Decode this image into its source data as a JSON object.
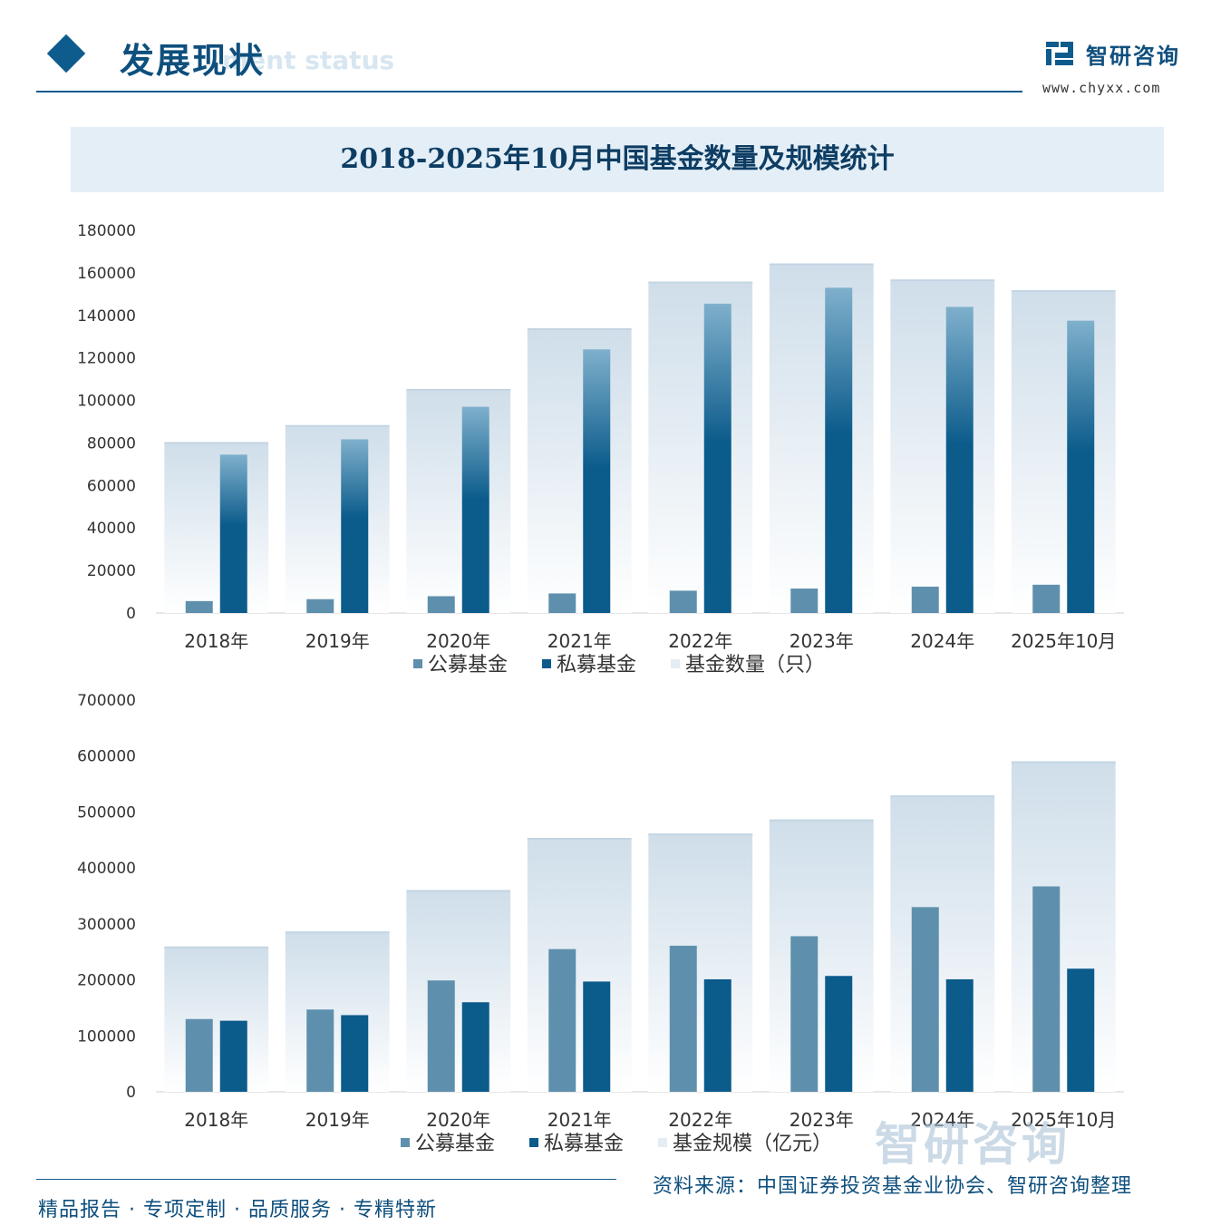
{
  "header": {
    "title": "发展现状",
    "subtitle_en": "ment status",
    "logo_text": "智研咨询",
    "logo_url": "www.chyxx.com"
  },
  "title": "2018-2025年10月中国基金数量及规模统计",
  "colors": {
    "public": "#5e90ad",
    "private": "#0b5b8b",
    "total_top": "#cfdeea",
    "total_bottom": "#ffffff",
    "accent": "#0e5c8e"
  },
  "chart_data": [
    {
      "type": "bar",
      "categories": [
        "2018年",
        "2019年",
        "2020年",
        "2021年",
        "2022年",
        "2023年",
        "2024年",
        "2025年10月"
      ],
      "ylim": [
        0,
        180000
      ],
      "yticks": [
        0,
        20000,
        40000,
        60000,
        80000,
        100000,
        120000,
        140000,
        160000,
        180000
      ],
      "series": [
        {
          "name": "公募基金",
          "values": [
            5600,
            6500,
            7900,
            9200,
            10500,
            11500,
            12400,
            13300
          ]
        },
        {
          "name": "私募基金",
          "values": [
            74500,
            81700,
            97000,
            124000,
            145500,
            153000,
            144000,
            137500
          ]
        },
        {
          "name": "基金数量（只）",
          "values": [
            80000,
            88000,
            105000,
            133500,
            155500,
            164000,
            156500,
            151500
          ]
        }
      ],
      "legend": "bottom"
    },
    {
      "type": "bar",
      "categories": [
        "2018年",
        "2019年",
        "2020年",
        "2021年",
        "2022年",
        "2023年",
        "2024年",
        "2025年10月"
      ],
      "ylim": [
        0,
        700000
      ],
      "yticks": [
        0,
        100000,
        200000,
        300000,
        400000,
        500000,
        600000,
        700000
      ],
      "series": [
        {
          "name": "公募基金",
          "values": [
            130000,
            147000,
            199000,
            255000,
            261000,
            278000,
            330000,
            367000
          ]
        },
        {
          "name": "私募基金",
          "values": [
            127000,
            137000,
            160000,
            197000,
            201000,
            207000,
            201000,
            220000
          ]
        },
        {
          "name": "基金规模（亿元）",
          "values": [
            258000,
            285000,
            359000,
            452000,
            460000,
            485000,
            528000,
            589000
          ]
        }
      ],
      "legend": "bottom"
    }
  ],
  "footer": {
    "slogan": "精品报告 · 专项定制 · 品质服务 · 专精特新",
    "source": "资料来源：中国证券投资基金业协会、智研咨询整理",
    "watermark": "智研咨询"
  }
}
